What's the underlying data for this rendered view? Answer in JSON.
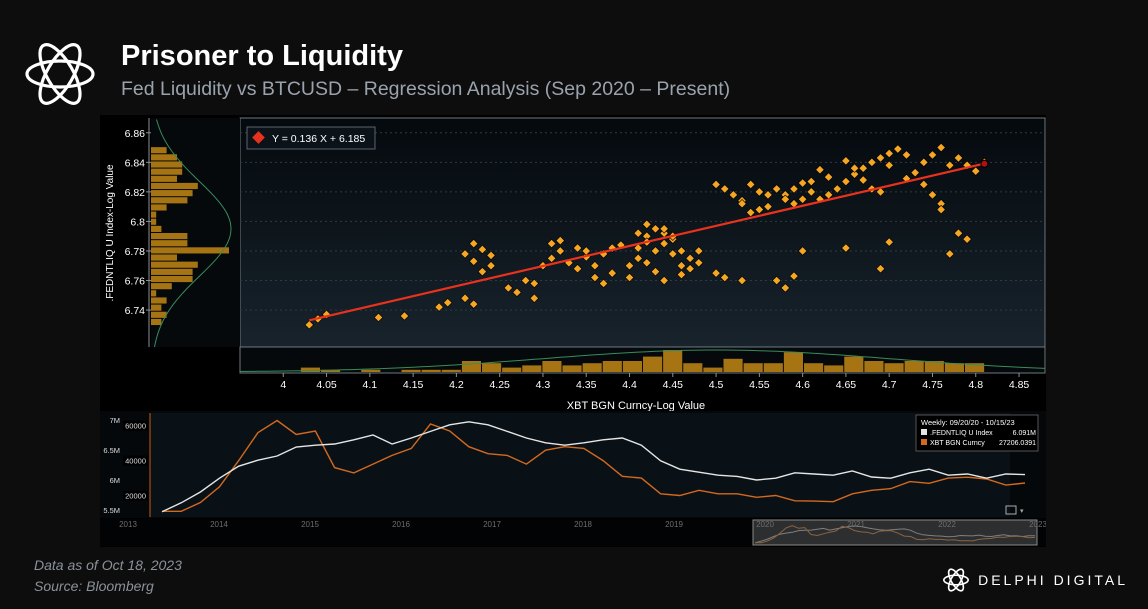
{
  "header": {
    "title": "Prisoner to Liquidity",
    "subtitle": "Fed Liquidity vs BTCUSD – Regression Analysis (Sep 2020 – Present)"
  },
  "footer": {
    "date_note": "Data as of Oct 18, 2023",
    "source": "Source: Bloomberg",
    "brand": "DELPHI DIGITAL"
  },
  "icons": {
    "logo": "delphi-knot-icon",
    "brand_logo": "delphi-knot-icon"
  },
  "colors": {
    "points": "#f5a623",
    "regression": "#e8321e",
    "fed_line": "#e6e6e6",
    "btc_line": "#d2691e",
    "histogram": "#a67412"
  },
  "chart_data": [
    {
      "type": "scatter",
      "xlabel": "XBT BGN Curncy-Log Value",
      "ylabel": ".FEDNTLIQ U Index-Log Value",
      "xlim": [
        3.95,
        4.88
      ],
      "ylim": [
        6.715,
        6.87
      ],
      "xticks": [
        "4",
        "4.05",
        "4.1",
        "4.15",
        "4.2",
        "4.25",
        "4.3",
        "4.35",
        "4.4",
        "4.45",
        "4.5",
        "4.55",
        "4.6",
        "4.65",
        "4.7",
        "4.75",
        "4.8",
        "4.85"
      ],
      "yticks": [
        "6.86",
        "6.84",
        "6.82",
        "6.8",
        "6.78",
        "6.76",
        "6.74"
      ],
      "legend": "Y = 0.136 X + 6.185",
      "regression": {
        "slope": 0.136,
        "intercept": 6.185,
        "x_range": [
          4.03,
          4.81
        ]
      },
      "latest_point": [
        4.81,
        6.839
      ],
      "points": [
        [
          4.03,
          6.73
        ],
        [
          4.04,
          6.734
        ],
        [
          4.05,
          6.737
        ],
        [
          4.11,
          6.735
        ],
        [
          4.14,
          6.736
        ],
        [
          4.18,
          6.742
        ],
        [
          4.19,
          6.745
        ],
        [
          4.21,
          6.748
        ],
        [
          4.22,
          6.744
        ],
        [
          4.21,
          6.778
        ],
        [
          4.22,
          6.785
        ],
        [
          4.23,
          6.781
        ],
        [
          4.24,
          6.777
        ],
        [
          4.22,
          6.773
        ],
        [
          4.23,
          6.766
        ],
        [
          4.24,
          6.77
        ],
        [
          4.26,
          6.755
        ],
        [
          4.27,
          6.752
        ],
        [
          4.28,
          6.76
        ],
        [
          4.29,
          6.758
        ],
        [
          4.29,
          6.748
        ],
        [
          4.3,
          6.77
        ],
        [
          4.31,
          6.775
        ],
        [
          4.32,
          6.78
        ],
        [
          4.31,
          6.785
        ],
        [
          4.32,
          6.787
        ],
        [
          4.33,
          6.772
        ],
        [
          4.34,
          6.768
        ],
        [
          4.34,
          6.782
        ],
        [
          4.35,
          6.776
        ],
        [
          4.35,
          6.78
        ],
        [
          4.36,
          6.77
        ],
        [
          4.37,
          6.778
        ],
        [
          4.38,
          6.782
        ],
        [
          4.39,
          6.784
        ],
        [
          4.36,
          6.762
        ],
        [
          4.37,
          6.758
        ],
        [
          4.38,
          6.765
        ],
        [
          4.4,
          6.77
        ],
        [
          4.41,
          6.775
        ],
        [
          4.41,
          6.782
        ],
        [
          4.42,
          6.79
        ],
        [
          4.43,
          6.795
        ],
        [
          4.42,
          6.786
        ],
        [
          4.43,
          6.78
        ],
        [
          4.44,
          6.792
        ],
        [
          4.44,
          6.785
        ],
        [
          4.45,
          6.788
        ],
        [
          4.42,
          6.772
        ],
        [
          4.43,
          6.766
        ],
        [
          4.44,
          6.76
        ],
        [
          4.45,
          6.778
        ],
        [
          4.46,
          6.78
        ],
        [
          4.46,
          6.77
        ],
        [
          4.47,
          6.775
        ],
        [
          4.47,
          6.768
        ],
        [
          4.48,
          6.772
        ],
        [
          4.48,
          6.78
        ],
        [
          4.46,
          6.764
        ],
        [
          4.45,
          6.79
        ],
        [
          4.44,
          6.795
        ],
        [
          4.42,
          6.798
        ],
        [
          4.41,
          6.792
        ],
        [
          4.4,
          6.762
        ],
        [
          4.5,
          6.765
        ],
        [
          4.51,
          6.762
        ],
        [
          4.53,
          6.76
        ],
        [
          4.52,
          6.818
        ],
        [
          4.53,
          6.814
        ],
        [
          4.51,
          6.822
        ],
        [
          4.5,
          6.825
        ],
        [
          4.54,
          6.825
        ],
        [
          4.55,
          6.82
        ],
        [
          4.56,
          6.818
        ],
        [
          4.57,
          6.822
        ],
        [
          4.58,
          6.818
        ],
        [
          4.59,
          6.822
        ],
        [
          4.6,
          6.826
        ],
        [
          4.61,
          6.82
        ],
        [
          4.62,
          6.815
        ],
        [
          4.63,
          6.818
        ],
        [
          4.64,
          6.822
        ],
        [
          4.65,
          6.827
        ],
        [
          4.66,
          6.832
        ],
        [
          4.67,
          6.836
        ],
        [
          4.68,
          6.84
        ],
        [
          4.69,
          6.843
        ],
        [
          4.7,
          6.846
        ],
        [
          4.71,
          6.849
        ],
        [
          4.72,
          6.845
        ],
        [
          4.65,
          6.841
        ],
        [
          4.66,
          6.836
        ],
        [
          4.67,
          6.828
        ],
        [
          4.68,
          6.822
        ],
        [
          4.69,
          6.82
        ],
        [
          4.7,
          6.838
        ],
        [
          4.63,
          6.83
        ],
        [
          4.62,
          6.835
        ],
        [
          4.61,
          6.827
        ],
        [
          4.6,
          6.815
        ],
        [
          4.59,
          6.812
        ],
        [
          4.58,
          6.815
        ],
        [
          4.56,
          6.81
        ],
        [
          4.55,
          6.808
        ],
        [
          4.54,
          6.806
        ],
        [
          4.53,
          6.812
        ],
        [
          4.57,
          6.76
        ],
        [
          4.58,
          6.755
        ],
        [
          4.59,
          6.763
        ],
        [
          4.6,
          6.78
        ],
        [
          4.65,
          6.782
        ],
        [
          4.7,
          6.786
        ],
        [
          4.69,
          6.768
        ],
        [
          4.74,
          6.825
        ],
        [
          4.75,
          6.818
        ],
        [
          4.76,
          6.812
        ],
        [
          4.77,
          6.838
        ],
        [
          4.78,
          6.843
        ],
        [
          4.79,
          6.838
        ],
        [
          4.8,
          6.834
        ],
        [
          4.81,
          6.84
        ],
        [
          4.75,
          6.845
        ],
        [
          4.76,
          6.85
        ],
        [
          4.74,
          6.84
        ],
        [
          4.73,
          6.833
        ],
        [
          4.72,
          6.829
        ],
        [
          4.76,
          6.808
        ],
        [
          4.77,
          6.778
        ],
        [
          4.78,
          6.792
        ],
        [
          4.79,
          6.788
        ]
      ]
    },
    {
      "type": "line",
      "legend_title": "Weekly: 09/20/20 - 10/15/23",
      "xticks": [
        "2013",
        "2014",
        "2015",
        "2016",
        "2017",
        "2018",
        "2019",
        "2020",
        "2021",
        "2022",
        "2023"
      ],
      "left_axis": [
        "7M",
        "6.5M",
        "6M",
        "5.5M"
      ],
      "right_axis": [
        "60000",
        "40000",
        "20000"
      ],
      "series": [
        {
          "name": ".FEDNTLIQ U Index",
          "last_value": "6.091M",
          "values": [
            5.47,
            5.62,
            5.8,
            6.03,
            6.23,
            6.33,
            6.4,
            6.55,
            6.58,
            6.6,
            6.67,
            6.75,
            6.6,
            6.7,
            6.81,
            6.92,
            6.97,
            6.92,
            6.81,
            6.7,
            6.62,
            6.58,
            6.62,
            6.67,
            6.7,
            6.58,
            6.32,
            6.18,
            6.13,
            6.08,
            6.06,
            6.0,
            6.03,
            6.12,
            6.1,
            6.08,
            6.15,
            6.05,
            6.03,
            6.12,
            6.18,
            6.08,
            6.1,
            6.03,
            6.1,
            6.09
          ]
        },
        {
          "name": "XBT BGN Curncy",
          "last_value": "27206.0391",
          "values": [
            11000,
            11000,
            16000,
            25000,
            40000,
            56000,
            63000,
            55000,
            57000,
            36000,
            33000,
            38000,
            43000,
            47000,
            61000,
            57000,
            48000,
            44000,
            43000,
            38000,
            46000,
            48000,
            47000,
            40000,
            31000,
            30000,
            21000,
            20000,
            23000,
            21000,
            21000,
            19000,
            20000,
            17000,
            16800,
            16500,
            21000,
            23000,
            24000,
            28000,
            27000,
            30000,
            30500,
            29500,
            26000,
            27206
          ]
        }
      ]
    }
  ]
}
